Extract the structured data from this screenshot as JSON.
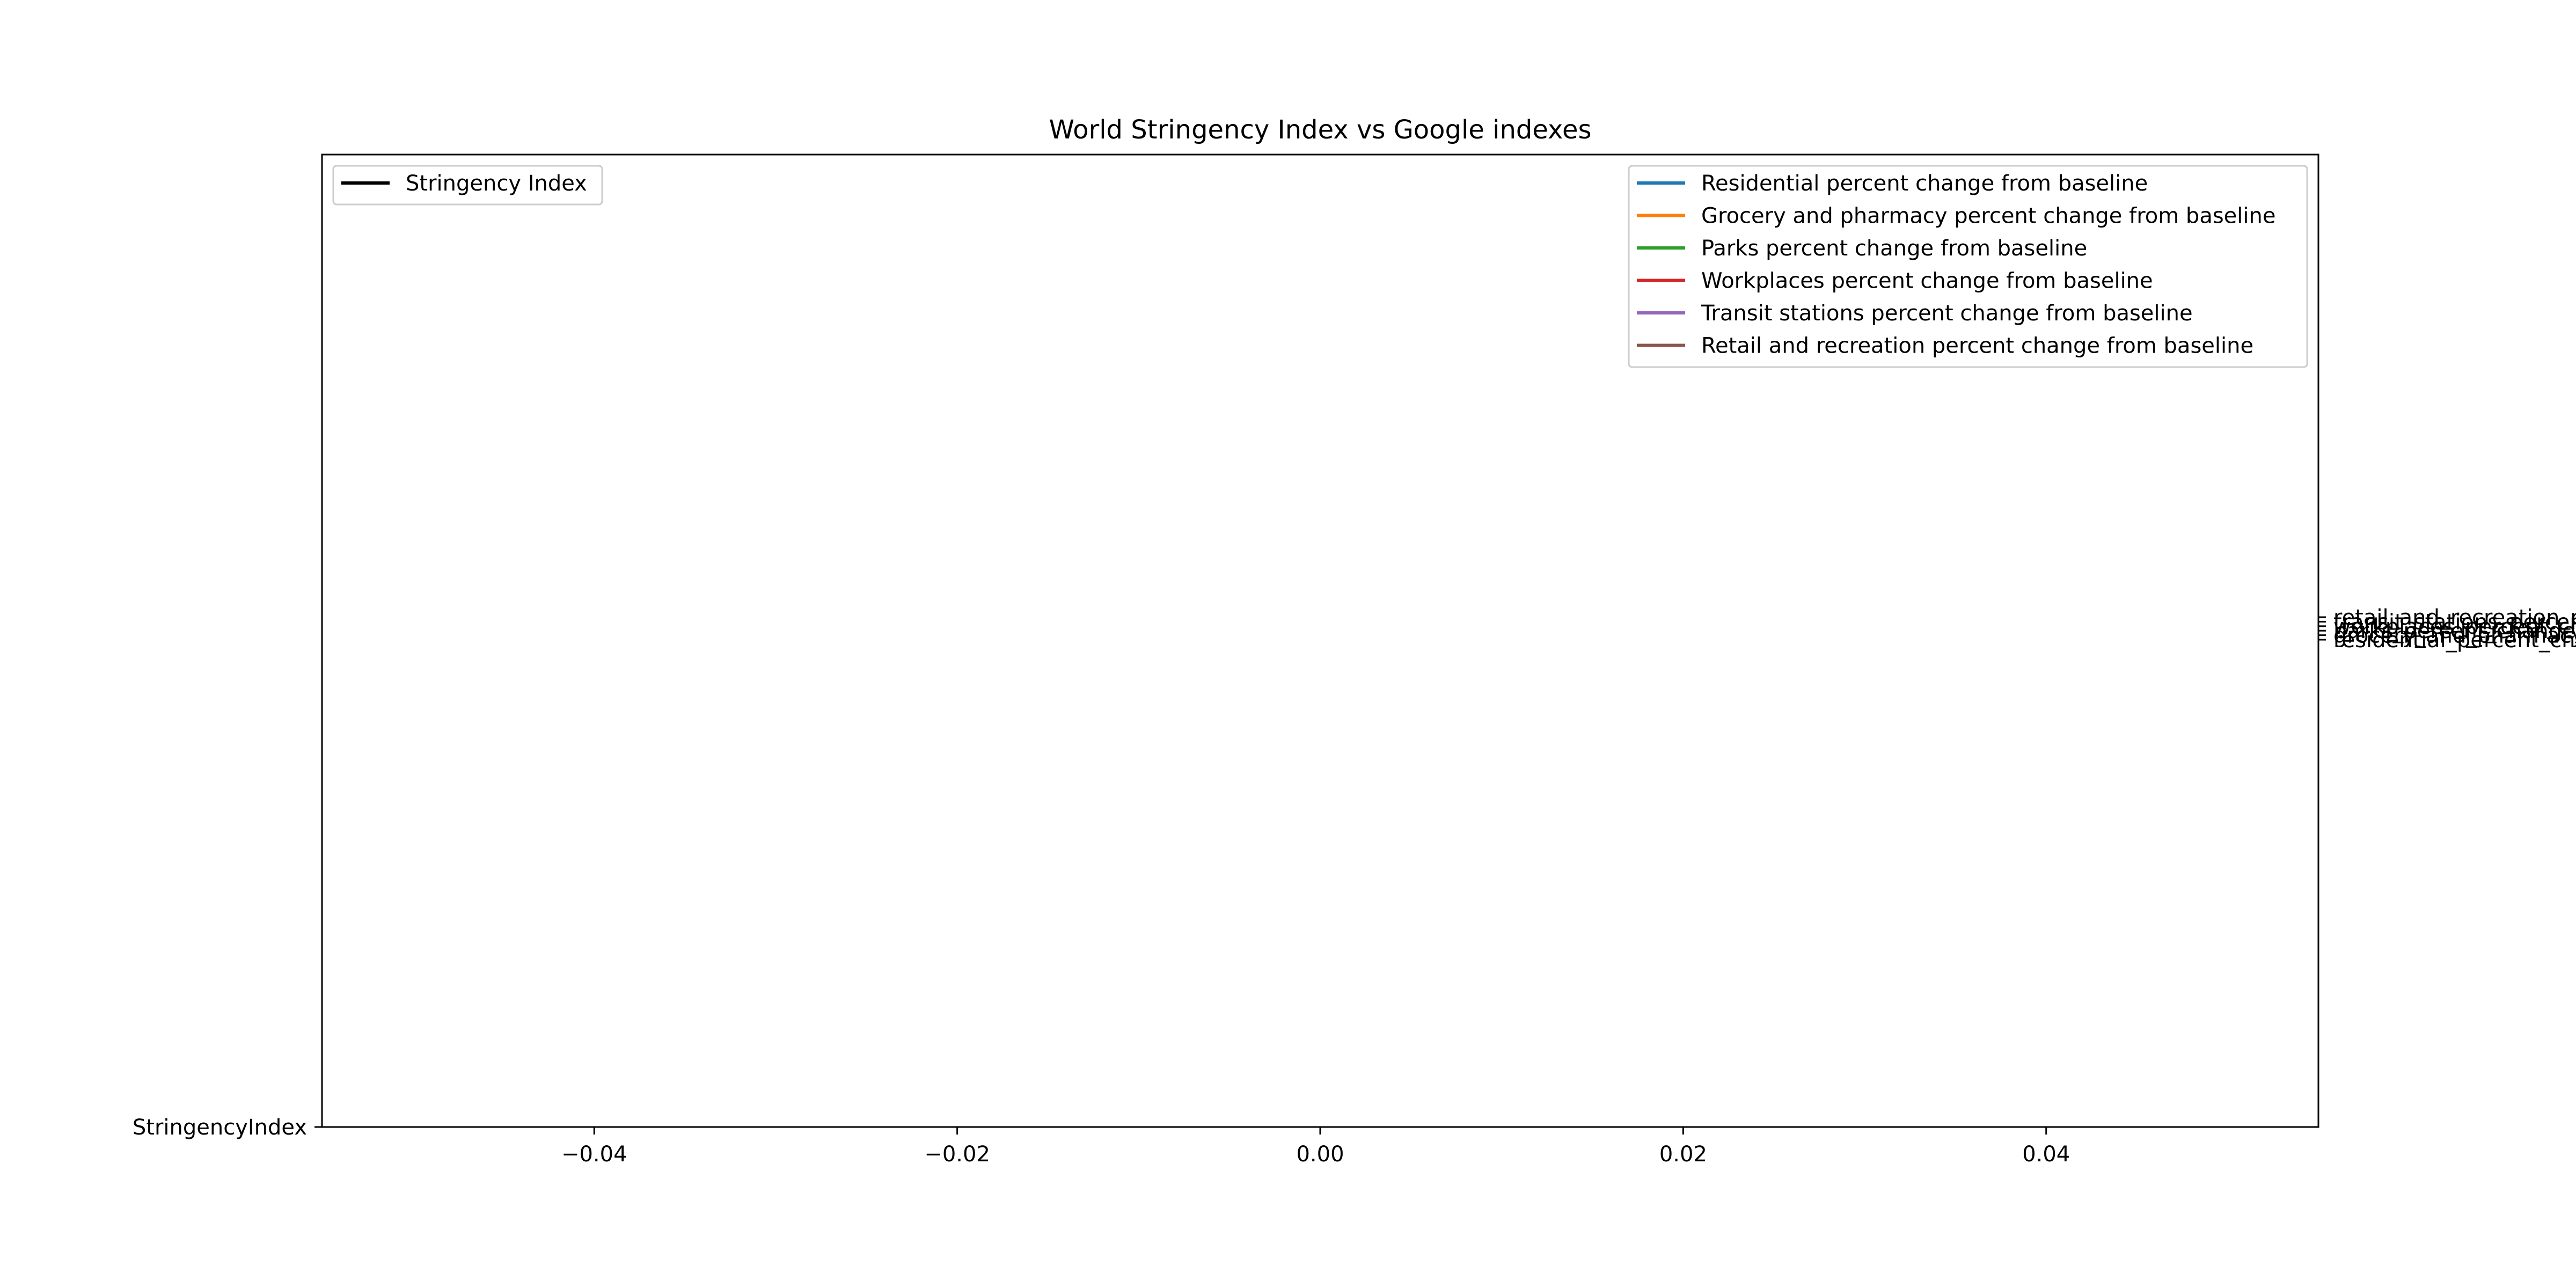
{
  "chart_data": {
    "type": "line",
    "title": "World Stringency Index vs Google indexes",
    "xlabel": "",
    "ylabel_left": "",
    "ylabel_right": "",
    "grid": false,
    "x_ticks": [
      "−0.04",
      "−0.02",
      "0.00",
      "0.02",
      "0.04"
    ],
    "x_tick_values": [
      -0.04,
      -0.02,
      0.0,
      0.02,
      0.04
    ],
    "xlim": [
      -0.055,
      0.055
    ],
    "left_axis": {
      "ticks": [
        "StringencyIndex"
      ]
    },
    "right_axis": {
      "ticks": [
        "retail_and_recreation_percent_change_from_baseline",
        "transit_stations_percent_change_from_baseline",
        "workplaces_percent_change_from_baseline",
        "parks_percent_change_from_baseline",
        "grocery_and_pharmacy_percent_change_from_baseline",
        "residential_percent_change_from_baseline"
      ]
    },
    "legend_left": {
      "placement": "upper-left",
      "entries": [
        {
          "label": "Stringency Index",
          "color": "#000000"
        }
      ]
    },
    "legend_right": {
      "placement": "upper-right",
      "entries": [
        {
          "label": "Residential percent change from baseline",
          "color": "#1f77b4"
        },
        {
          "label": "Grocery and pharmacy percent change from baseline",
          "color": "#ff7f0e"
        },
        {
          "label": "Parks percent change from baseline",
          "color": "#2ca02c"
        },
        {
          "label": "Workplaces percent change from baseline",
          "color": "#d62728"
        },
        {
          "label": "Transit stations percent change from baseline",
          "color": "#9467bd"
        },
        {
          "label": "Retail and recreation percent change from baseline",
          "color": "#8c564b"
        }
      ]
    },
    "series": []
  }
}
